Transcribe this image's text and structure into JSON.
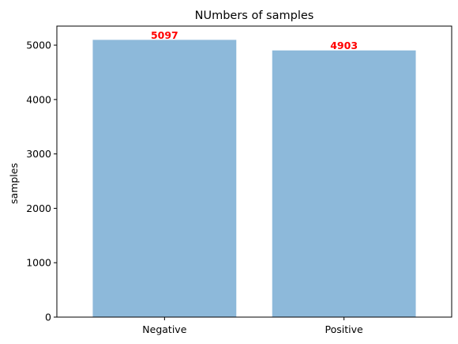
{
  "chart_data": {
    "type": "bar",
    "title": "NUmbers of samples",
    "xlabel": "",
    "ylabel": "samples",
    "categories": [
      "Negative",
      "Positive"
    ],
    "values": [
      5097,
      4903
    ],
    "data_labels": [
      "5097",
      "4903"
    ],
    "ylim": [
      0,
      5350
    ],
    "yticks": [
      0,
      1000,
      2000,
      3000,
      4000,
      5000
    ],
    "grid": false,
    "legend": "none",
    "bar_color": "#8db9da",
    "label_color": "#ff0000"
  }
}
